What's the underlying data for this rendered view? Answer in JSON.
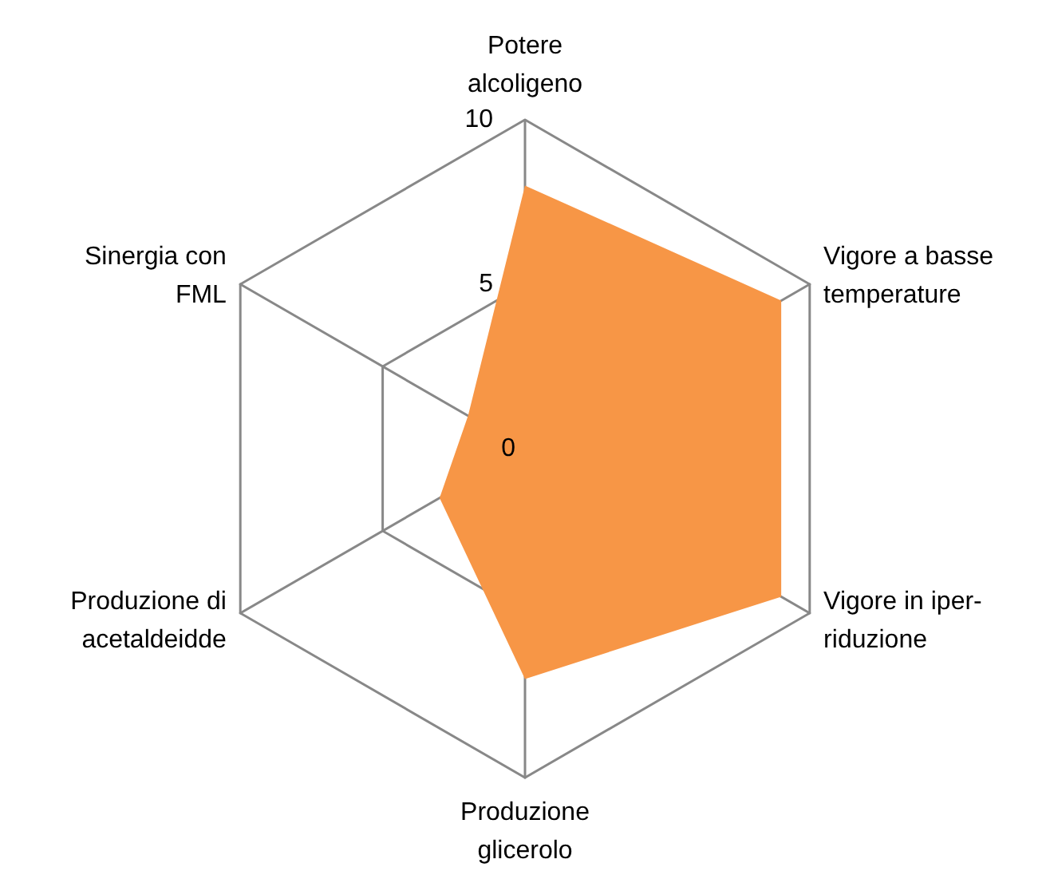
{
  "chart_data": {
    "type": "radar",
    "categories": [
      "Potere alcoligeno",
      "Vigore a basse temperature",
      "Vigore in iper-riduzione",
      "Produzione glicerolo",
      "Produzione di acetaldeidde",
      "Sinergia con FML"
    ],
    "series": [
      {
        "color": "#f79646",
        "values": [
          8,
          9,
          9,
          7,
          3,
          2
        ]
      }
    ],
    "ylim": [
      0,
      10
    ],
    "yticks": [
      0,
      5,
      10
    ]
  }
}
